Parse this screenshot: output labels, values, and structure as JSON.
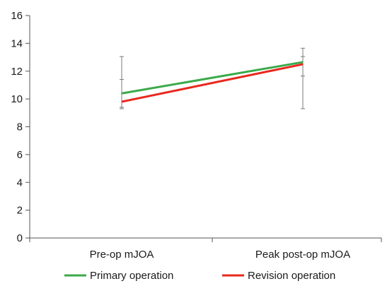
{
  "chart_data": {
    "type": "line",
    "title": "",
    "xlabel": "",
    "ylabel": "",
    "categories": [
      "Pre-op mJOA",
      "Peak post-op mJOA"
    ],
    "ylim": [
      0,
      16
    ],
    "yticks": [
      0,
      2,
      4,
      6,
      8,
      10,
      12,
      14,
      16
    ],
    "grid": false,
    "legend_position": "bottom",
    "series": [
      {
        "name": "Primary operation",
        "color": "#3aaa4a",
        "values": [
          10.4,
          12.65
        ],
        "error_low": [
          9.4,
          11.65
        ],
        "error_high": [
          11.4,
          13.65
        ]
      },
      {
        "name": "Revision operation",
        "color": "#e8281e",
        "values": [
          9.8,
          12.5
        ],
        "error_low": [
          9.3,
          9.3
        ],
        "error_high": [
          13.05,
          13.05
        ]
      }
    ]
  }
}
